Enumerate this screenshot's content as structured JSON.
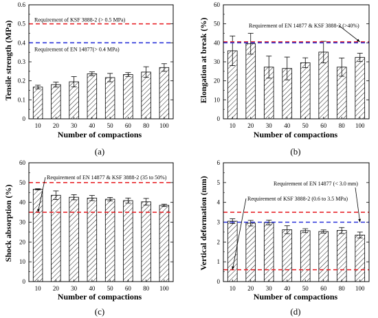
{
  "chart_data": [
    {
      "panel_label": "(a)",
      "type": "bar",
      "xlabel": "Number of compactions",
      "ylabel": "Tensile strength (MPa)",
      "categories": [
        "10",
        "20",
        "30",
        "40",
        "50",
        "60",
        "80",
        "100"
      ],
      "values": [
        0.167,
        0.18,
        0.195,
        0.237,
        0.217,
        0.233,
        0.246,
        0.27
      ],
      "errors": [
        0.01,
        0.013,
        0.027,
        0.01,
        0.022,
        0.01,
        0.028,
        0.02
      ],
      "ylim": [
        0,
        0.6
      ],
      "yticks": [
        "0",
        "0.1",
        "0.2",
        "0.3",
        "0.4",
        "0.5",
        "0.6"
      ],
      "bar_pattern": "diagonal-hatch",
      "reference_lines": [
        {
          "value": 0.5,
          "color": "#e8262b",
          "style": "dashed",
          "label": "Requirement of KSF 3888-2 (> 0.5 MPa)"
        },
        {
          "value": 0.4,
          "color": "#2b34d9",
          "style": "dashed",
          "label": "Requirement of EN 14877(> 0.4 MPa)"
        }
      ]
    },
    {
      "panel_label": "(b)",
      "type": "bar",
      "xlabel": "Number of compactions",
      "ylabel": "Elongation at break (%)",
      "categories": [
        "10",
        "20",
        "30",
        "40",
        "50",
        "60",
        "80",
        "100"
      ],
      "values": [
        35.8,
        39.5,
        27.2,
        26.5,
        29.5,
        35.1,
        27.2,
        32.3
      ],
      "errors": [
        7.8,
        5.5,
        5.8,
        6,
        2.6,
        5.7,
        4.8,
        2.2
      ],
      "ylim": [
        0,
        60
      ],
      "yticks": [
        "0",
        "10",
        "20",
        "30",
        "40",
        "50",
        "60"
      ],
      "bar_pattern": "diagonal-hatch",
      "reference_lines": [
        {
          "value": 40.5,
          "color": "#e8262b",
          "style": "dashed",
          "label": ""
        },
        {
          "value": 40,
          "color": "#2b34d9",
          "style": "dashed",
          "label": ""
        }
      ],
      "annotations": [
        {
          "text": "Requirement of EN 14877 & KSF 3888-2 (>40%)",
          "arrow_to_category": "100"
        }
      ]
    },
    {
      "panel_label": "(c)",
      "type": "bar",
      "xlabel": "Number of compactions",
      "ylabel": "Shock absorption (%)",
      "categories": [
        "10",
        "20",
        "30",
        "40",
        "50",
        "60",
        "80",
        "100"
      ],
      "values": [
        46.6,
        43.6,
        42.6,
        42.2,
        41.6,
        40.9,
        40.3,
        38.5
      ],
      "errors": [
        0.3,
        2.2,
        1.3,
        1.3,
        0.9,
        1.3,
        1.7,
        0.6
      ],
      "ylim": [
        0,
        60
      ],
      "yticks": [
        "0",
        "10",
        "20",
        "30",
        "40",
        "50",
        "60"
      ],
      "bar_pattern": "diagonal-hatch",
      "reference_lines": [
        {
          "value": 50,
          "color": "#e8262b",
          "style": "dashed",
          "label": ""
        },
        {
          "value": 35,
          "color": "#e8262b",
          "style": "dashed",
          "label": ""
        }
      ],
      "annotations": [
        {
          "text": "Requirement of EN 14877  & KSF 3888-2 (35 to 50%)",
          "arrow_to_category": "10"
        }
      ]
    },
    {
      "panel_label": "(d)",
      "type": "bar",
      "xlabel": "Number of compactions",
      "ylabel": "Vertical deformation (mm)",
      "categories": [
        "10",
        "20",
        "30",
        "40",
        "50",
        "60",
        "80",
        "100"
      ],
      "values": [
        3.05,
        2.95,
        2.98,
        2.62,
        2.57,
        2.53,
        2.58,
        2.35
      ],
      "errors": [
        0.12,
        0.14,
        0.12,
        0.2,
        0.1,
        0.08,
        0.15,
        0.15
      ],
      "ylim": [
        0,
        6
      ],
      "yticks": [
        "0",
        "1",
        "2",
        "3",
        "4",
        "5",
        "6"
      ],
      "bar_pattern": "diagonal-hatch",
      "reference_lines": [
        {
          "value": 3.5,
          "color": "#e8262b",
          "style": "dashed",
          "label": ""
        },
        {
          "value": 0.6,
          "color": "#e8262b",
          "style": "dashed",
          "label": ""
        },
        {
          "value": 3.0,
          "color": "#2b34d9",
          "style": "dashed",
          "label": ""
        }
      ],
      "annotations": [
        {
          "text": "Requirement of EN 14877 (< 3.0 mm)",
          "arrow_to_category": "100"
        },
        {
          "text": "Requirement of KSF 3888-2 (0.6 to 3.5 MPa)",
          "arrow_to_category": "10"
        }
      ]
    }
  ]
}
